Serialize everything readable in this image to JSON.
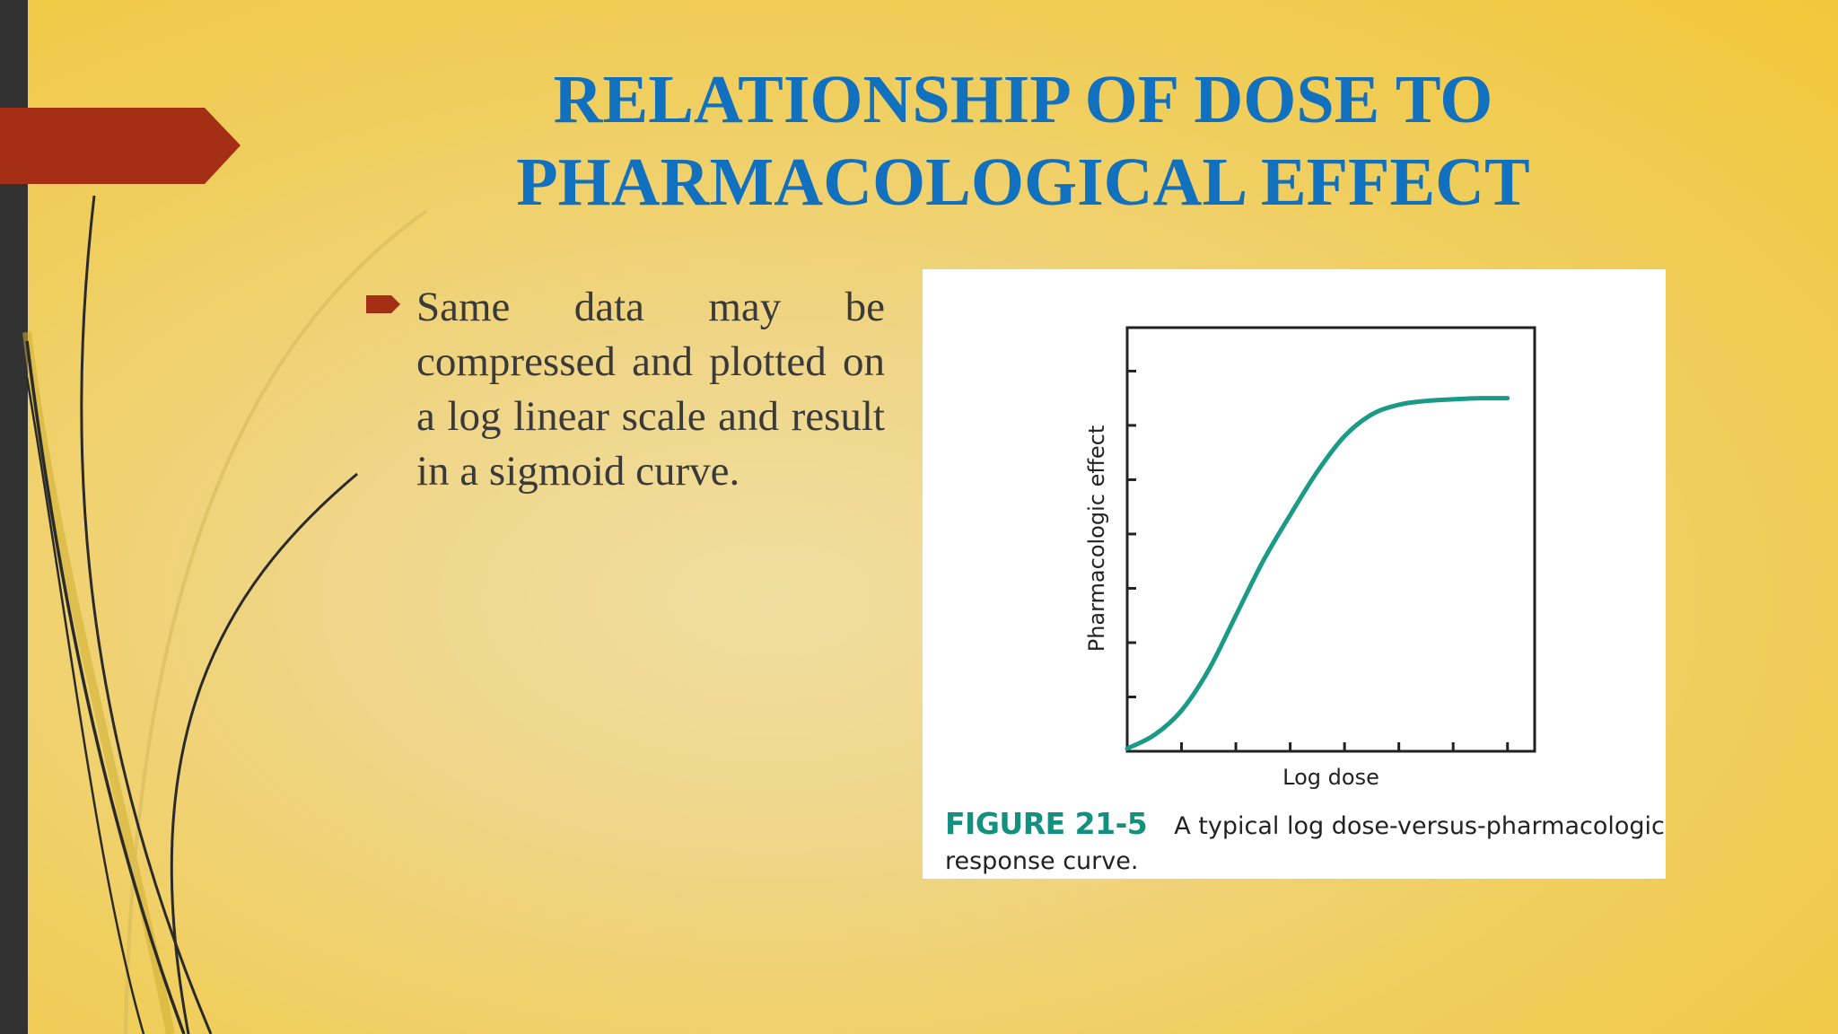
{
  "slide": {
    "title_line1": "RELATIONSHIP OF DOSE TO",
    "title_line2": "PHARMACOLOGICAL EFFECT",
    "bullet_text": "Same data may be compressed and plotted on a log linear scale and result in a sigmoid curve."
  },
  "figure": {
    "label": "FIGURE 21-5",
    "caption_line1": "A typical log dose-versus-pharmacologic",
    "caption_line2": "response curve."
  },
  "colors": {
    "title": "#1171bf",
    "accent_tab": "#a52f14",
    "curve": "#1a9a87",
    "figure_label": "#14907f"
  },
  "chart_data": {
    "type": "line",
    "xlabel": "Log dose",
    "ylabel": "Pharmacologic effect",
    "xlim": [
      0,
      7.5
    ],
    "ylim": [
      0,
      7.8
    ],
    "x_ticks": [
      1,
      2,
      3,
      4,
      5,
      6,
      7
    ],
    "y_ticks": [
      1,
      2,
      3,
      4,
      5,
      6,
      7
    ],
    "series": [
      {
        "x": [
          0,
          0.5,
          1,
          1.5,
          2,
          2.5,
          3,
          3.5,
          4,
          4.5,
          5,
          5.5,
          6,
          6.5,
          7
        ],
        "values": [
          0.05,
          0.3,
          0.75,
          1.5,
          2.5,
          3.5,
          4.35,
          5.15,
          5.8,
          6.2,
          6.38,
          6.45,
          6.48,
          6.5,
          6.5
        ]
      }
    ]
  }
}
